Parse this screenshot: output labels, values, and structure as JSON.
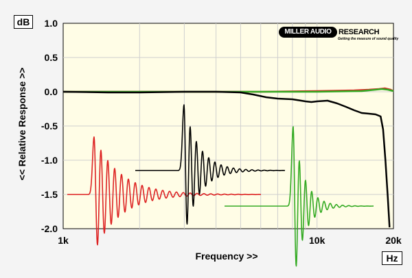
{
  "chart_data": {
    "type": "line",
    "x_unit": "Hz",
    "y_unit": "dB",
    "xlabel": "Frequency >>",
    "ylabel": "<< Relative Response >>",
    "x_scale": "log",
    "xlim": [
      1000,
      20000
    ],
    "ylim": [
      -2.0,
      1.0
    ],
    "grid": true,
    "x_ticks": [
      {
        "value": 1000,
        "label": "1k"
      },
      {
        "value": 10000,
        "label": "10k"
      },
      {
        "value": 20000,
        "label": "20k"
      }
    ],
    "y_ticks": [
      {
        "value": 1.0,
        "label": "1.0"
      },
      {
        "value": 0.5,
        "label": "0.5"
      },
      {
        "value": 0.0,
        "label": "0.0"
      },
      {
        "value": -0.5,
        "label": "-0.5"
      },
      {
        "value": -1.0,
        "label": "-1.0"
      },
      {
        "value": -1.5,
        "label": "-1.5"
      },
      {
        "value": -2.0,
        "label": "-2.0"
      }
    ],
    "series": [
      {
        "color": "#000000",
        "x": [
          1000,
          1500,
          2000,
          3000,
          4000,
          5000,
          5600,
          6300,
          7000,
          8000,
          9000,
          9500,
          10000,
          11000,
          12000,
          13000,
          14000,
          15000,
          16000,
          17000,
          17800,
          18200,
          18600,
          19000,
          19300
        ],
        "y": [
          0.0,
          -0.01,
          -0.01,
          0.0,
          0.0,
          -0.01,
          -0.04,
          -0.08,
          -0.1,
          -0.11,
          -0.14,
          -0.15,
          -0.14,
          -0.13,
          -0.17,
          -0.22,
          -0.27,
          -0.31,
          -0.32,
          -0.33,
          -0.36,
          -0.55,
          -1.0,
          -1.55,
          -1.98
        ]
      },
      {
        "color": "#dd2222",
        "x": [
          1000,
          2000,
          4000,
          6000,
          10000,
          14000,
          16000,
          17500,
          18500,
          19500,
          20000
        ],
        "y": [
          0.0,
          0.0,
          0.0,
          0.0,
          0.01,
          0.02,
          0.03,
          0.04,
          0.05,
          0.03,
          0.01
        ]
      },
      {
        "color": "#33aa22",
        "x": [
          1000,
          5000,
          10000,
          15000,
          17000,
          18000,
          19000,
          20000
        ],
        "y": [
          0.0,
          0.0,
          0.0,
          0.01,
          0.03,
          0.04,
          0.03,
          0.01
        ]
      }
    ]
  },
  "logo": {
    "badge": "MILLER AUDIO",
    "word": "RESEARCH",
    "tagline": "Getting the measure of sound quality"
  },
  "colors": {
    "plot_bg": "#fffde6",
    "grid": "#cfcfcf",
    "black_trace": "#000000",
    "red_trace": "#dd2222",
    "green_trace": "#33aa22"
  }
}
